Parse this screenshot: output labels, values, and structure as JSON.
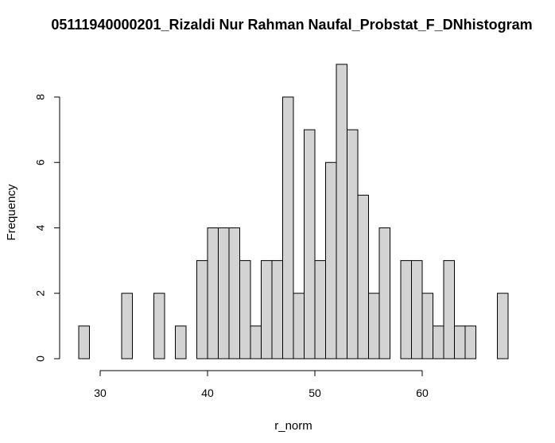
{
  "chart_data": {
    "type": "bar",
    "title": "05111940000201_Rizaldi Nur Rahman Naufal_Probstat_F_DNhistogram",
    "xlabel": "r_norm",
    "ylabel": "Frequency",
    "x_ticks": [
      30,
      40,
      50,
      60
    ],
    "y_ticks": [
      0,
      2,
      4,
      6,
      8
    ],
    "xlim": [
      28,
      68
    ],
    "ylim": [
      0,
      9
    ],
    "bin_width": 1,
    "bin_starts": [
      28,
      29,
      30,
      31,
      32,
      33,
      34,
      35,
      36,
      37,
      38,
      39,
      40,
      41,
      42,
      43,
      44,
      45,
      46,
      47,
      48,
      49,
      50,
      51,
      52,
      53,
      54,
      55,
      56,
      57,
      58,
      59,
      60,
      61,
      62,
      63,
      64,
      65,
      66,
      67
    ],
    "values": [
      1,
      0,
      0,
      0,
      2,
      0,
      0,
      2,
      0,
      1,
      0,
      3,
      4,
      4,
      4,
      3,
      1,
      3,
      3,
      8,
      2,
      7,
      3,
      6,
      9,
      7,
      5,
      2,
      4,
      0,
      3,
      3,
      2,
      1,
      3,
      1,
      1,
      0,
      0,
      2
    ],
    "bar_fill": "#d3d3d3",
    "bar_stroke": "#000000"
  }
}
